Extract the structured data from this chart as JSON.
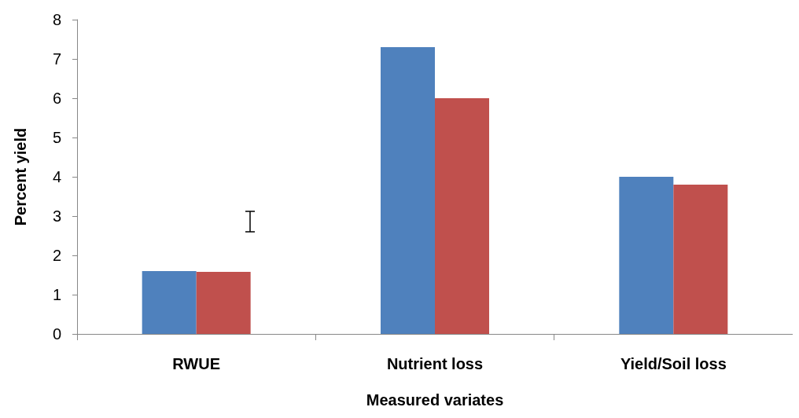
{
  "chart_data": {
    "type": "bar",
    "xlabel": "Measured variates",
    "ylabel": "Percent yield",
    "categories": [
      "RWUE",
      "Nutrient loss",
      "Yield/Soil loss"
    ],
    "series": [
      {
        "color": "#4f81bd",
        "values": [
          1.6,
          7.3,
          4.0
        ]
      },
      {
        "color": "#c0504d",
        "values": [
          1.58,
          6.0,
          3.8
        ]
      }
    ],
    "ylim": [
      0,
      8
    ],
    "yticks": [
      0,
      1,
      2,
      3,
      4,
      5,
      6,
      7,
      8
    ]
  }
}
